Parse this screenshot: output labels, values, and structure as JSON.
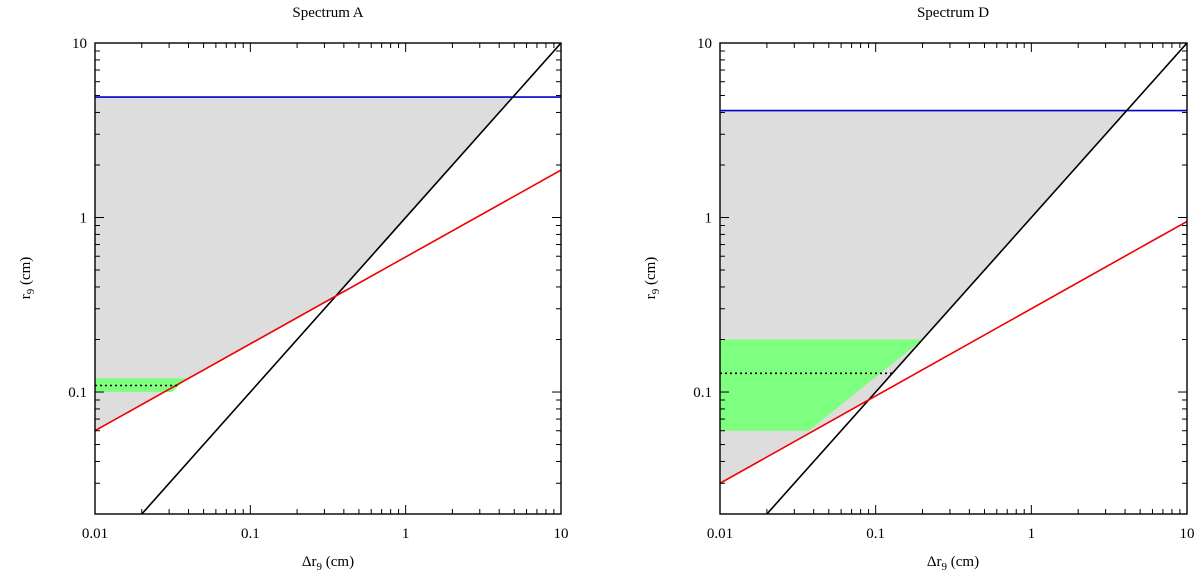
{
  "chart_data": [
    {
      "type": "line",
      "title": "Spectrum A",
      "xlabel": {
        "prefix": "Δr",
        "sub": "9",
        "suffix": " (cm)"
      },
      "ylabel": {
        "prefix": "r",
        "sub": "9",
        "suffix": " (cm)"
      },
      "xscale": "log",
      "yscale": "log",
      "xlim": [
        0.01,
        10
      ],
      "ylim": [
        0.02,
        10
      ],
      "xticks": [
        {
          "value": 0.01,
          "label": "0.01"
        },
        {
          "value": 0.1,
          "label": "0.1"
        },
        {
          "value": 1,
          "label": "1"
        },
        {
          "value": 10,
          "label": "10"
        }
      ],
      "yticks": [
        {
          "value": 0.1,
          "label": "0.1"
        },
        {
          "value": 1,
          "label": "1"
        },
        {
          "value": 10,
          "label": "10"
        }
      ],
      "grid": false,
      "series": [
        {
          "color": "#0000cc",
          "x": [
            0.01,
            10
          ],
          "y": [
            4.9,
            4.9
          ]
        },
        {
          "color": "#000000",
          "x": [
            0.02,
            10
          ],
          "y": [
            0.02,
            10
          ]
        },
        {
          "color": "#ee0000",
          "x": [
            0.01,
            10
          ],
          "y": [
            0.06,
            1.87
          ]
        },
        {
          "color": "#000000",
          "dashed": true,
          "x": [
            0.01,
            0.035
          ],
          "y": [
            0.109,
            0.109
          ]
        }
      ],
      "regions": [
        {
          "color": "#dddddd",
          "x": [
            0.01,
            4.9,
            0.35,
            0.01
          ],
          "y": [
            4.9,
            4.9,
            0.35,
            0.06
          ]
        },
        {
          "color": "#7fff7f",
          "x": [
            0.01,
            0.039,
            0.0312,
            0.01
          ],
          "y": [
            0.12,
            0.12,
            0.1,
            0.1
          ]
        }
      ]
    },
    {
      "type": "line",
      "title": "Spectrum D",
      "xlabel": {
        "prefix": "Δr",
        "sub": "9",
        "suffix": " (cm)"
      },
      "ylabel": {
        "prefix": "r",
        "sub": "9",
        "suffix": " (cm)"
      },
      "xscale": "log",
      "yscale": "log",
      "xlim": [
        0.01,
        10
      ],
      "ylim": [
        0.02,
        10
      ],
      "xticks": [
        {
          "value": 0.01,
          "label": "0.01"
        },
        {
          "value": 0.1,
          "label": "0.1"
        },
        {
          "value": 1,
          "label": "1"
        },
        {
          "value": 10,
          "label": "10"
        }
      ],
      "yticks": [
        {
          "value": 0.1,
          "label": "0.1"
        },
        {
          "value": 1,
          "label": "1"
        },
        {
          "value": 10,
          "label": "10"
        }
      ],
      "grid": false,
      "series": [
        {
          "color": "#0000cc",
          "x": [
            0.01,
            10
          ],
          "y": [
            4.1,
            4.1
          ]
        },
        {
          "color": "#000000",
          "x": [
            0.02,
            10
          ],
          "y": [
            0.02,
            10
          ]
        },
        {
          "color": "#ee0000",
          "x": [
            0.01,
            10
          ],
          "y": [
            0.03,
            0.95
          ]
        },
        {
          "color": "#000000",
          "dashed": true,
          "x": [
            0.01,
            0.13
          ],
          "y": [
            0.128,
            0.128
          ]
        }
      ],
      "regions": [
        {
          "color": "#dddddd",
          "x": [
            0.01,
            4.1,
            0.088,
            0.01
          ],
          "y": [
            4.1,
            4.1,
            0.088,
            0.03
          ]
        },
        {
          "color": "#7fff7f",
          "x": [
            0.01,
            0.2,
            0.0371,
            0.01
          ],
          "y": [
            0.2,
            0.2,
            0.06,
            0.06
          ]
        }
      ]
    }
  ]
}
